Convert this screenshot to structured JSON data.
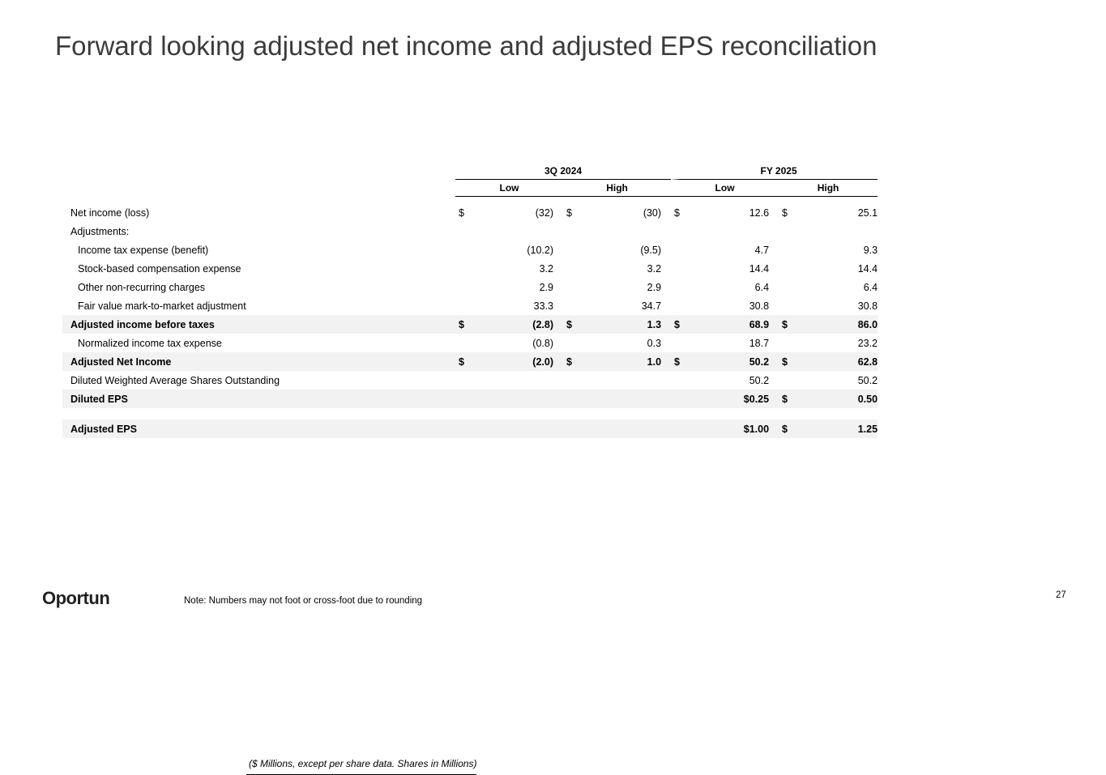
{
  "title": "Forward looking adjusted net income and adjusted EPS reconciliation",
  "table": {
    "group_headers": [
      "3Q 2024",
      "FY 2025"
    ],
    "unit_note": "($ Millions, except per share data. Shares in Millions)",
    "column_headers": [
      "Low",
      "High",
      "Low",
      "High"
    ],
    "rows": [
      {
        "label": "Net income (loss)",
        "cells": [
          {
            "currency": "$",
            "value": "(32)"
          },
          {
            "currency": "$",
            "value": "(30)"
          },
          {
            "currency": "$",
            "value": "12.6"
          },
          {
            "currency": "$",
            "value": "25.1"
          }
        ]
      },
      {
        "label": "Adjustments:",
        "cells": [
          null,
          null,
          null,
          null
        ]
      },
      {
        "label": "Income tax expense (benefit)",
        "indent": true,
        "cells": [
          {
            "value": "(10.2)"
          },
          {
            "value": "(9.5)"
          },
          {
            "value": "4.7"
          },
          {
            "value": "9.3"
          }
        ]
      },
      {
        "label": "Stock-based compensation expense",
        "indent": true,
        "cells": [
          {
            "value": "3.2"
          },
          {
            "value": "3.2"
          },
          {
            "value": "14.4"
          },
          {
            "value": "14.4"
          }
        ]
      },
      {
        "label": "Other non-recurring charges",
        "indent": true,
        "cells": [
          {
            "value": "2.9"
          },
          {
            "value": "2.9"
          },
          {
            "value": "6.4"
          },
          {
            "value": "6.4"
          }
        ]
      },
      {
        "label": "Fair value mark-to-market adjustment",
        "indent": true,
        "cells": [
          {
            "value": "33.3"
          },
          {
            "value": "34.7"
          },
          {
            "value": "30.8"
          },
          {
            "value": "30.8"
          }
        ]
      },
      {
        "label": "Adjusted income before taxes",
        "bold": true,
        "cells": [
          {
            "currency": "$",
            "value": "(2.8)"
          },
          {
            "currency": "$",
            "value": "1.3"
          },
          {
            "currency": "$",
            "value": "68.9"
          },
          {
            "currency": "$",
            "value": "86.0"
          }
        ]
      },
      {
        "label": "Normalized income tax expense",
        "indent": true,
        "cells": [
          {
            "value": "(0.8)"
          },
          {
            "value": "0.3"
          },
          {
            "value": "18.7"
          },
          {
            "value": "23.2"
          }
        ]
      },
      {
        "label": "Adjusted Net Income",
        "bold": true,
        "cells": [
          {
            "currency": "$",
            "value": "(2.0)"
          },
          {
            "currency": "$",
            "value": "1.0"
          },
          {
            "currency": "$",
            "value": "50.2"
          },
          {
            "currency": "$",
            "value": "62.8"
          }
        ]
      },
      {
        "label": "Diluted Weighted Average Shares Outstanding",
        "cells": [
          null,
          null,
          {
            "value": "50.2"
          },
          {
            "value": "50.2"
          }
        ]
      },
      {
        "label": "Diluted EPS",
        "bold": true,
        "cells": [
          null,
          null,
          {
            "value": "$0.25"
          },
          {
            "currency": "$",
            "value": "0.50"
          }
        ]
      },
      {
        "label": "Adjusted EPS",
        "bold": true,
        "cells": [
          null,
          null,
          {
            "value": "$1.00"
          },
          {
            "currency": "$",
            "value": "1.25"
          }
        ]
      }
    ]
  },
  "logo": "Oportun",
  "note": "Note: Numbers may not foot or cross-foot due to rounding",
  "page_number": "27"
}
